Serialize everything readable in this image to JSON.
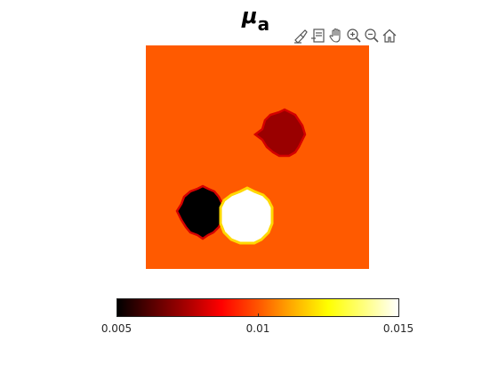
{
  "title": {
    "symbol": "μ",
    "subscript": "a"
  },
  "toolbar": {
    "items": [
      {
        "icon": "brush-icon"
      },
      {
        "icon": "datatip-icon"
      },
      {
        "icon": "pan-hand-icon"
      },
      {
        "icon": "zoom-in-icon"
      },
      {
        "icon": "zoom-out-icon"
      },
      {
        "icon": "home-icon"
      }
    ]
  },
  "colors": {
    "background": "#ff5a00",
    "inclusion_dark_red": "#9a0000",
    "inclusion_black": "#000000",
    "inclusion_white": "#ffffff"
  },
  "colorbar": {
    "colormap": "hot",
    "min": 0.005,
    "max": 0.015,
    "tick_labels": [
      "0.005",
      "0.01",
      "0.015"
    ]
  },
  "image": {
    "background_value": 0.0115,
    "inclusions": [
      {
        "name": "dark-red-inclusion",
        "value": 0.008
      },
      {
        "name": "black-inclusion",
        "value": 0.005
      },
      {
        "name": "white-inclusion",
        "value": 0.015
      }
    ]
  }
}
